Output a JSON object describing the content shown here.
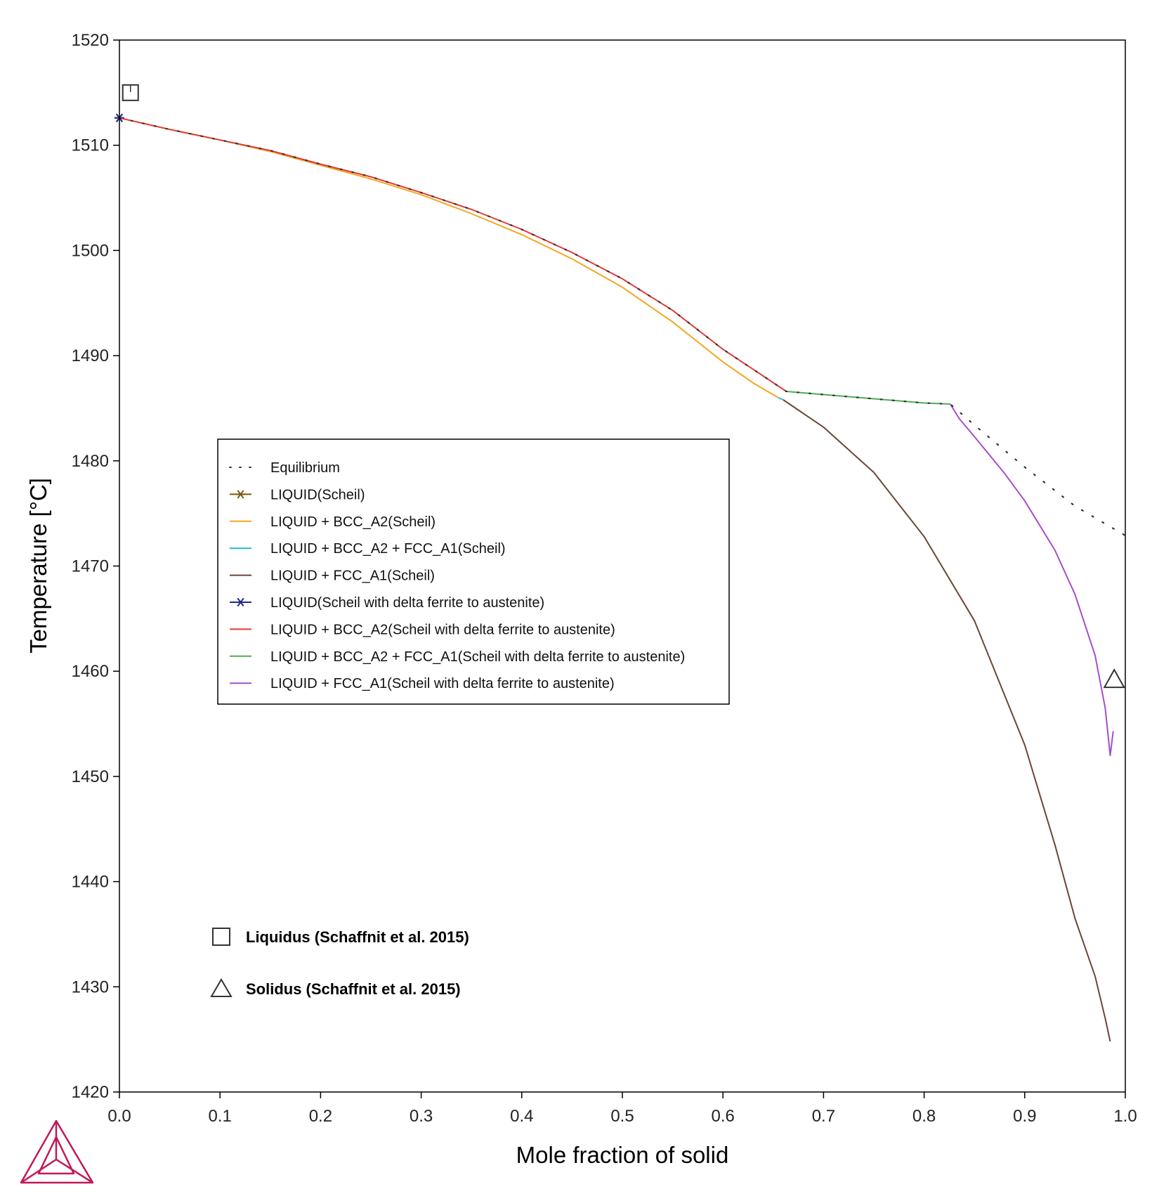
{
  "chart_data": {
    "type": "line",
    "xlabel": "Mole fraction of solid",
    "ylabel": "Temperature [°C]",
    "xlim": [
      0,
      1
    ],
    "ylim": [
      1420,
      1520
    ],
    "xticks": [
      0,
      0.1,
      0.2,
      0.3,
      0.4,
      0.5,
      0.6,
      0.7,
      0.8,
      0.9,
      1.0
    ],
    "xtick_labels": [
      "0.0",
      "0.1",
      "0.2",
      "0.3",
      "0.4",
      "0.5",
      "0.6",
      "0.7",
      "0.8",
      "0.9",
      "1.0"
    ],
    "yticks": [
      1420,
      1430,
      1440,
      1450,
      1460,
      1470,
      1480,
      1490,
      1500,
      1510,
      1520
    ],
    "ytick_labels": [
      "1420",
      "1430",
      "1440",
      "1450",
      "1460",
      "1470",
      "1480",
      "1490",
      "1500",
      "1510",
      "1520"
    ],
    "grid": false,
    "legend_position": "center-left",
    "series": [
      {
        "name": "Equilibrium",
        "color": "#333333",
        "style": "dotted",
        "x": [
          0.0,
          0.05,
          0.1,
          0.15,
          0.2,
          0.25,
          0.3,
          0.35,
          0.4,
          0.45,
          0.5,
          0.55,
          0.6,
          0.63,
          0.663,
          0.7,
          0.75,
          0.8,
          0.826,
          0.85,
          0.9,
          0.95,
          1.0
        ],
        "y": [
          1512.6,
          1511.5,
          1510.5,
          1509.5,
          1508.2,
          1507.0,
          1505.5,
          1503.9,
          1502.0,
          1499.8,
          1497.3,
          1494.3,
          1490.6,
          1488.7,
          1486.6,
          1486.3,
          1485.9,
          1485.5,
          1485.4,
          1483.4,
          1479.4,
          1475.7,
          1472.9
        ]
      },
      {
        "name": "LIQUID(Scheil)",
        "color": "#7a5c10",
        "style": "star",
        "x": [
          0.0,
          0.003
        ],
        "y": [
          1512.6,
          1512.55
        ]
      },
      {
        "name": "LIQUID + BCC_A2(Scheil)",
        "color": "#f5a623",
        "style": "solid",
        "x": [
          0.0,
          0.05,
          0.1,
          0.15,
          0.2,
          0.25,
          0.3,
          0.35,
          0.4,
          0.45,
          0.5,
          0.55,
          0.6,
          0.63,
          0.655
        ],
        "y": [
          1512.6,
          1511.5,
          1510.5,
          1509.4,
          1508.1,
          1506.8,
          1505.3,
          1503.5,
          1501.5,
          1499.2,
          1496.5,
          1493.2,
          1489.4,
          1487.4,
          1486.0
        ]
      },
      {
        "name": "LIQUID + BCC_A2 + FCC_A1(Scheil)",
        "color": "#29b6d8",
        "style": "solid",
        "x": [
          0.655,
          0.66
        ],
        "y": [
          1486.0,
          1485.8
        ]
      },
      {
        "name": "LIQUID + FCC_A1(Scheil)",
        "color": "#6b4535",
        "style": "solid",
        "x": [
          0.66,
          0.7,
          0.75,
          0.8,
          0.85,
          0.9,
          0.93,
          0.95,
          0.97,
          0.98,
          0.985
        ],
        "y": [
          1485.8,
          1483.2,
          1478.9,
          1472.8,
          1464.8,
          1453.0,
          1443.5,
          1436.5,
          1431.0,
          1427.0,
          1424.8
        ]
      },
      {
        "name": "LIQUID(Scheil with delta ferrite to austenite)",
        "color": "#1f2a8a",
        "style": "star",
        "x": [
          0.0,
          0.003
        ],
        "y": [
          1512.6,
          1512.55
        ]
      },
      {
        "name": "LIQUID + BCC_A2(Scheil with delta ferrite to austenite)",
        "color": "#e53935",
        "style": "solid",
        "x": [
          0.0,
          0.05,
          0.1,
          0.15,
          0.2,
          0.25,
          0.3,
          0.35,
          0.4,
          0.45,
          0.5,
          0.55,
          0.6,
          0.63,
          0.663
        ],
        "y": [
          1512.6,
          1511.5,
          1510.5,
          1509.5,
          1508.2,
          1507.0,
          1505.5,
          1503.9,
          1502.0,
          1499.8,
          1497.3,
          1494.3,
          1490.6,
          1488.7,
          1486.6
        ]
      },
      {
        "name": "LIQUID + BCC_A2 + FCC_A1(Scheil with delta ferrite to austenite)",
        "color": "#4caf50",
        "style": "solid",
        "x": [
          0.663,
          0.7,
          0.75,
          0.8,
          0.826
        ],
        "y": [
          1486.6,
          1486.3,
          1485.9,
          1485.5,
          1485.4
        ]
      },
      {
        "name": "LIQUID + FCC_A1(Scheil with delta ferrite to austenite)",
        "color": "#a64dc9",
        "style": "solid",
        "x": [
          0.826,
          0.835,
          0.85,
          0.88,
          0.9,
          0.93,
          0.95,
          0.97,
          0.98,
          0.985,
          0.988
        ],
        "y": [
          1485.4,
          1484.0,
          1482.3,
          1478.8,
          1476.2,
          1471.5,
          1467.3,
          1461.5,
          1456.5,
          1452.0,
          1454.3
        ]
      }
    ],
    "markers": [
      {
        "label": "Liquidus (Schaffnit et al. 2015)",
        "shape": "square",
        "x": 0.011,
        "y": 1515.0
      },
      {
        "label": "Solidus (Schaffnit et al. 2015)",
        "shape": "triangle",
        "x": 0.989,
        "y": 1459.2
      }
    ]
  }
}
